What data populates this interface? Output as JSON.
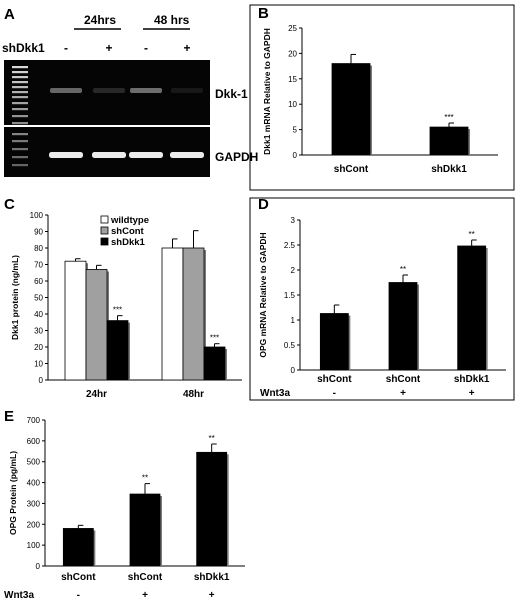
{
  "panels": {
    "A": {
      "label": "A",
      "shrna_label": "shDkk1",
      "time_headers": [
        "24hrs",
        "48 hrs"
      ],
      "lane_signs": [
        "-",
        "+",
        "-",
        "+"
      ],
      "band_labels": [
        "Dkk-1",
        "GAPDH"
      ],
      "dkk1_intensity": [
        0.55,
        0.2,
        0.6,
        0.12
      ],
      "gapdh_intensity": [
        1.0,
        1.0,
        1.0,
        1.0
      ]
    },
    "B": {
      "label": "B"
    },
    "C": {
      "label": "C"
    },
    "D": {
      "label": "D"
    },
    "E": {
      "label": "E"
    }
  },
  "chart_data": [
    {
      "panel": "B",
      "type": "bar",
      "categories": [
        "shCont",
        "shDkk1"
      ],
      "values": [
        18,
        5.5
      ],
      "errors": [
        1.8,
        0.8
      ],
      "significance": [
        "",
        "***"
      ],
      "ylabel": "Dkk1 mRNA Relative to GAPDH",
      "ylim": [
        0,
        25
      ],
      "yticks": [
        0,
        5,
        10,
        15,
        20,
        25
      ],
      "colors": [
        "#000000"
      ]
    },
    {
      "panel": "C",
      "type": "bar",
      "categories": [
        "24hr",
        "48hr"
      ],
      "series": [
        {
          "name": "wildtype",
          "values": [
            72,
            80
          ],
          "errors": [
            1.5,
            5.5
          ],
          "color": "#ffffff",
          "significance": [
            "",
            ""
          ]
        },
        {
          "name": "shCont",
          "values": [
            67,
            80
          ],
          "errors": [
            2.5,
            10.5
          ],
          "color": "#a0a0a0",
          "significance": [
            "",
            ""
          ]
        },
        {
          "name": "shDkk1",
          "values": [
            36,
            20
          ],
          "errors": [
            3.0,
            2.0
          ],
          "color": "#000000",
          "significance": [
            "***",
            "***"
          ]
        }
      ],
      "ylabel": "Dkk1 protein (ng/mL)",
      "ylim": [
        0,
        100
      ],
      "yticks": [
        0,
        10,
        20,
        30,
        40,
        50,
        60,
        70,
        80,
        90,
        100
      ],
      "legend": "top-left"
    },
    {
      "panel": "D",
      "type": "bar",
      "categories": [
        "shCont",
        "shCont",
        "shDkk1"
      ],
      "values": [
        1.13,
        1.75,
        2.48
      ],
      "errors": [
        0.17,
        0.15,
        0.12
      ],
      "significance": [
        "",
        "**",
        "**"
      ],
      "ylabel": "OPG mRNA Relative to GAPDH",
      "ylim": [
        0,
        3
      ],
      "yticks": [
        0,
        0.5,
        1,
        1.5,
        2,
        2.5,
        3
      ],
      "treatment_label": "Wnt3a",
      "treatment_signs": [
        "-",
        "+",
        "+"
      ]
    },
    {
      "panel": "E",
      "type": "bar",
      "categories": [
        "shCont",
        "shCont",
        "shDkk1"
      ],
      "values": [
        180,
        345,
        545
      ],
      "errors": [
        15,
        50,
        40
      ],
      "significance": [
        "",
        "**",
        "**"
      ],
      "ylabel": "OPG Protein (pg/mL)",
      "ylim": [
        0,
        700
      ],
      "yticks": [
        0,
        100,
        200,
        300,
        400,
        500,
        600,
        700
      ],
      "treatment_label": "Wnt3a",
      "treatment_signs": [
        "-",
        "+",
        "+"
      ]
    }
  ]
}
